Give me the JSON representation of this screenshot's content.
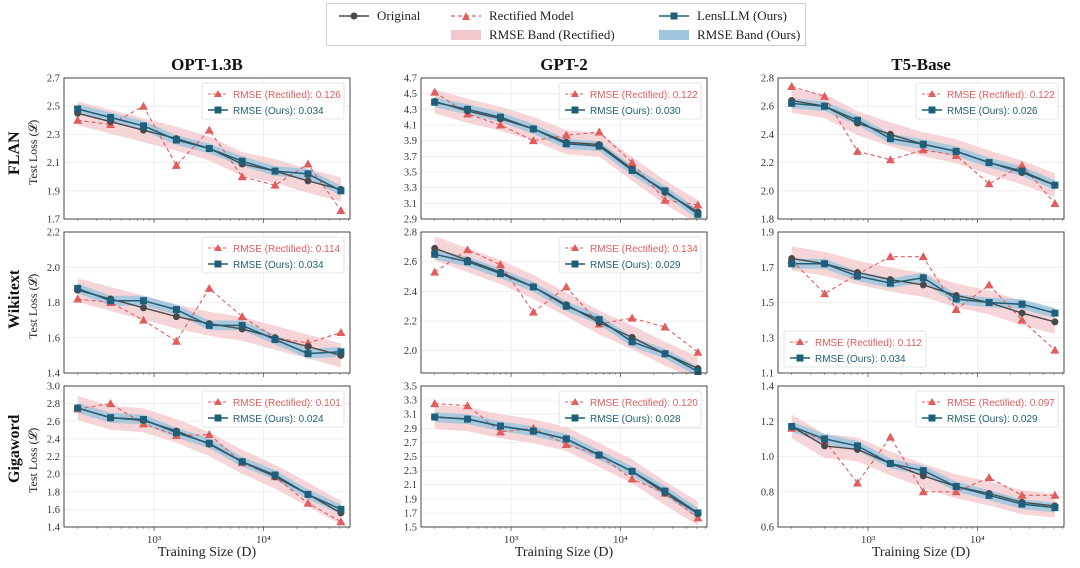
{
  "legend": {
    "items": [
      {
        "label": "Original",
        "kind": "line-circle",
        "color": "#4a4a4a"
      },
      {
        "label": "Rectified Model",
        "kind": "dashed-triangle",
        "color": "#e05d5d"
      },
      {
        "label": "LensLLM (Ours)",
        "kind": "line-square",
        "color": "#1f5f7a"
      },
      {
        "label": "RMSE Band (Rectified)",
        "kind": "band",
        "color": "#f3c7cc"
      },
      {
        "label": "RMSE Band (Ours)",
        "kind": "band",
        "color": "#9fc6dc"
      }
    ]
  },
  "columns": [
    "OPT-1.3B",
    "GPT-2",
    "T5-Base"
  ],
  "rows": [
    "FLAN",
    "Wikitext",
    "Gigaword"
  ],
  "y_axis_label": "Test Loss (𝓛)",
  "x_axis_label": "Training Size (D)",
  "x_tick_labels": [
    "10³",
    "10⁴"
  ],
  "colors": {
    "original": "#4a4a4a",
    "rectified": "#e05d5d",
    "ours": "#1f5f7a",
    "band_rect": "#f3c7cc",
    "band_ours": "#9fc6dc"
  },
  "chart_data": [
    {
      "type": "line",
      "row": "FLAN",
      "col": "OPT-1.3B",
      "ylim": [
        1.7,
        2.7
      ],
      "yticks": [
        "1.7",
        "1.9",
        "2.1",
        "2.3",
        "2.5",
        "2.7"
      ],
      "x": [
        200,
        400,
        800,
        1600,
        3200,
        6400,
        12800,
        25600,
        51200
      ],
      "series": [
        {
          "name": "Original",
          "values": [
            2.45,
            2.39,
            2.33,
            2.27,
            2.2,
            2.09,
            2.04,
            1.97,
            1.91
          ]
        },
        {
          "name": "Rectified Model",
          "values": [
            2.4,
            2.37,
            2.5,
            2.08,
            2.33,
            2.0,
            1.94,
            2.09,
            1.76
          ]
        },
        {
          "name": "LensLLM (Ours)",
          "values": [
            2.48,
            2.42,
            2.36,
            2.26,
            2.2,
            2.11,
            2.04,
            2.02,
            1.9
          ]
        }
      ],
      "annotations": [
        "RMSE (Rectified): 0.126",
        "RMSE (Ours): 0.034"
      ],
      "annotation_loc": "upper-right"
    },
    {
      "type": "line",
      "row": "FLAN",
      "col": "GPT-2",
      "ylim": [
        2.9,
        4.7
      ],
      "yticks": [
        "2.9",
        "3.1",
        "3.3",
        "3.5",
        "3.7",
        "3.9",
        "4.1",
        "4.3",
        "4.5",
        "4.7"
      ],
      "x": [
        200,
        400,
        800,
        1600,
        3200,
        6400,
        12800,
        25600,
        51200
      ],
      "series": [
        {
          "name": "Original",
          "values": [
            4.4,
            4.28,
            4.18,
            4.05,
            3.88,
            3.85,
            3.54,
            3.24,
            2.99
          ]
        },
        {
          "name": "Rectified Model",
          "values": [
            4.52,
            4.24,
            4.1,
            3.9,
            3.97,
            4.01,
            3.62,
            3.14,
            3.08
          ]
        },
        {
          "name": "LensLLM (Ours)",
          "values": [
            4.39,
            4.3,
            4.2,
            4.05,
            3.86,
            3.83,
            3.52,
            3.26,
            2.96
          ]
        }
      ],
      "annotations": [
        "RMSE (Rectified): 0.122",
        "RMSE (Ours): 0.030"
      ],
      "annotation_loc": "upper-right"
    },
    {
      "type": "line",
      "row": "FLAN",
      "col": "T5-Base",
      "ylim": [
        1.8,
        2.8
      ],
      "yticks": [
        "1.8",
        "2.0",
        "2.2",
        "2.4",
        "2.6",
        "2.8"
      ],
      "x": [
        200,
        400,
        800,
        1600,
        3200,
        6400,
        12800,
        25600,
        51200
      ],
      "series": [
        {
          "name": "Original",
          "values": [
            2.64,
            2.6,
            2.48,
            2.4,
            2.33,
            2.28,
            2.2,
            2.13,
            2.04
          ]
        },
        {
          "name": "Rectified Model",
          "values": [
            2.74,
            2.67,
            2.28,
            2.22,
            2.29,
            2.25,
            2.05,
            2.18,
            1.91
          ]
        },
        {
          "name": "LensLLM (Ours)",
          "values": [
            2.62,
            2.6,
            2.5,
            2.37,
            2.33,
            2.28,
            2.2,
            2.14,
            2.04
          ]
        }
      ],
      "annotations": [
        "RMSE (Rectified): 0.122",
        "RMSE (Ours): 0.026"
      ],
      "annotation_loc": "upper-right"
    },
    {
      "type": "line",
      "row": "Wikitext",
      "col": "OPT-1.3B",
      "ylim": [
        1.4,
        2.2
      ],
      "yticks": [
        "1.4",
        "1.6",
        "1.8",
        "2.0",
        "2.2"
      ],
      "x": [
        200,
        400,
        800,
        1600,
        3200,
        6400,
        12800,
        25600,
        51200
      ],
      "series": [
        {
          "name": "Original",
          "values": [
            1.87,
            1.82,
            1.77,
            1.72,
            1.68,
            1.65,
            1.6,
            1.55,
            1.5
          ]
        },
        {
          "name": "Rectified Model",
          "values": [
            1.82,
            1.8,
            1.7,
            1.58,
            1.88,
            1.72,
            1.6,
            1.57,
            1.63
          ]
        },
        {
          "name": "LensLLM (Ours)",
          "values": [
            1.88,
            1.81,
            1.81,
            1.76,
            1.67,
            1.67,
            1.59,
            1.51,
            1.52
          ]
        }
      ],
      "annotations": [
        "RMSE (Rectified): 0.114",
        "RMSE (Ours): 0.034"
      ],
      "annotation_loc": "upper-right"
    },
    {
      "type": "line",
      "row": "Wikitext",
      "col": "GPT-2",
      "ylim": [
        1.85,
        2.8
      ],
      "yticks": [
        "2.0",
        "2.2",
        "2.4",
        "2.6",
        "2.8"
      ],
      "x": [
        200,
        400,
        800,
        1600,
        3200,
        6400,
        12800,
        25600,
        51200
      ],
      "series": [
        {
          "name": "Original",
          "values": [
            2.69,
            2.61,
            2.53,
            2.43,
            2.31,
            2.19,
            2.09,
            1.98,
            1.88
          ]
        },
        {
          "name": "Rectified Model",
          "values": [
            2.53,
            2.68,
            2.58,
            2.26,
            2.43,
            2.18,
            2.22,
            2.16,
            1.99
          ]
        },
        {
          "name": "LensLLM (Ours)",
          "values": [
            2.65,
            2.6,
            2.52,
            2.43,
            2.3,
            2.21,
            2.06,
            1.98,
            1.86
          ]
        }
      ],
      "annotations": [
        "RMSE (Rectified): 0.134",
        "RMSE (Ours): 0.029"
      ],
      "annotation_loc": "upper-right"
    },
    {
      "type": "line",
      "row": "Wikitext",
      "col": "T5-Base",
      "ylim": [
        1.1,
        1.9
      ],
      "yticks": [
        "1.1",
        "1.3",
        "1.5",
        "1.7",
        "1.9"
      ],
      "x": [
        200,
        400,
        800,
        1600,
        3200,
        6400,
        12800,
        25600,
        51200
      ],
      "series": [
        {
          "name": "Original",
          "values": [
            1.75,
            1.72,
            1.67,
            1.63,
            1.6,
            1.54,
            1.5,
            1.44,
            1.39
          ]
        },
        {
          "name": "Rectified Model",
          "values": [
            1.74,
            1.55,
            1.66,
            1.76,
            1.76,
            1.46,
            1.6,
            1.4,
            1.23
          ]
        },
        {
          "name": "LensLLM (Ours)",
          "values": [
            1.72,
            1.72,
            1.65,
            1.61,
            1.64,
            1.52,
            1.5,
            1.49,
            1.44
          ]
        }
      ],
      "annotations": [
        "RMSE (Rectified): 0.112",
        "RMSE (Ours): 0.034"
      ],
      "annotation_loc": "lower-left"
    },
    {
      "type": "line",
      "row": "Gigaword",
      "col": "OPT-1.3B",
      "ylim": [
        1.4,
        3.0
      ],
      "yticks": [
        "1.4",
        "1.6",
        "1.8",
        "2.0",
        "2.2",
        "2.4",
        "2.6",
        "2.8",
        "3.0"
      ],
      "x": [
        200,
        400,
        800,
        1600,
        3200,
        6400,
        12800,
        25600,
        51200
      ],
      "series": [
        {
          "name": "Original",
          "values": [
            2.75,
            2.64,
            2.61,
            2.49,
            2.34,
            2.14,
            1.97,
            1.77,
            1.56
          ]
        },
        {
          "name": "Rectified Model",
          "values": [
            2.74,
            2.8,
            2.57,
            2.44,
            2.45,
            2.13,
            1.97,
            1.67,
            1.46
          ]
        },
        {
          "name": "LensLLM (Ours)",
          "values": [
            2.75,
            2.64,
            2.62,
            2.47,
            2.35,
            2.14,
            1.99,
            1.77,
            1.6
          ]
        }
      ],
      "annotations": [
        "RMSE (Rectified): 0.101",
        "RMSE (Ours): 0.024"
      ],
      "annotation_loc": "upper-right"
    },
    {
      "type": "line",
      "row": "Gigaword",
      "col": "GPT-2",
      "ylim": [
        1.5,
        3.5
      ],
      "yticks": [
        "1.5",
        "1.7",
        "1.9",
        "2.1",
        "2.3",
        "2.5",
        "2.7",
        "2.9",
        "3.1",
        "3.3",
        "3.5"
      ],
      "x": [
        200,
        400,
        800,
        1600,
        3200,
        6400,
        12800,
        25600,
        51200
      ],
      "series": [
        {
          "name": "Original",
          "values": [
            3.06,
            3.03,
            2.93,
            2.86,
            2.75,
            2.52,
            2.29,
            1.98,
            1.69
          ]
        },
        {
          "name": "Rectified Model",
          "values": [
            3.25,
            3.22,
            2.85,
            2.9,
            2.67,
            2.52,
            2.18,
            1.98,
            1.63
          ]
        },
        {
          "name": "LensLLM (Ours)",
          "values": [
            3.06,
            3.03,
            2.93,
            2.86,
            2.75,
            2.52,
            2.29,
            2.01,
            1.7
          ]
        }
      ],
      "annotations": [
        "RMSE (Rectified): 0.120",
        "RMSE (Ours): 0.028"
      ],
      "annotation_loc": "upper-right"
    },
    {
      "type": "line",
      "row": "Gigaword",
      "col": "T5-Base",
      "ylim": [
        0.6,
        1.4
      ],
      "yticks": [
        "0.6",
        "0.8",
        "1.0",
        "1.2",
        "1.4"
      ],
      "x": [
        200,
        400,
        800,
        1600,
        3200,
        6400,
        12800,
        25600,
        51200
      ],
      "series": [
        {
          "name": "Original",
          "values": [
            1.17,
            1.06,
            1.04,
            0.96,
            0.89,
            0.83,
            0.79,
            0.74,
            0.72
          ]
        },
        {
          "name": "Rectified Model",
          "values": [
            1.16,
            1.09,
            0.85,
            1.11,
            0.8,
            0.8,
            0.88,
            0.78,
            0.78
          ]
        },
        {
          "name": "LensLLM (Ours)",
          "values": [
            1.17,
            1.1,
            1.06,
            0.96,
            0.92,
            0.83,
            0.78,
            0.73,
            0.71
          ]
        }
      ],
      "annotations": [
        "RMSE (Rectified): 0.097",
        "RMSE (Ours): 0.029"
      ],
      "annotation_loc": "upper-right"
    }
  ]
}
